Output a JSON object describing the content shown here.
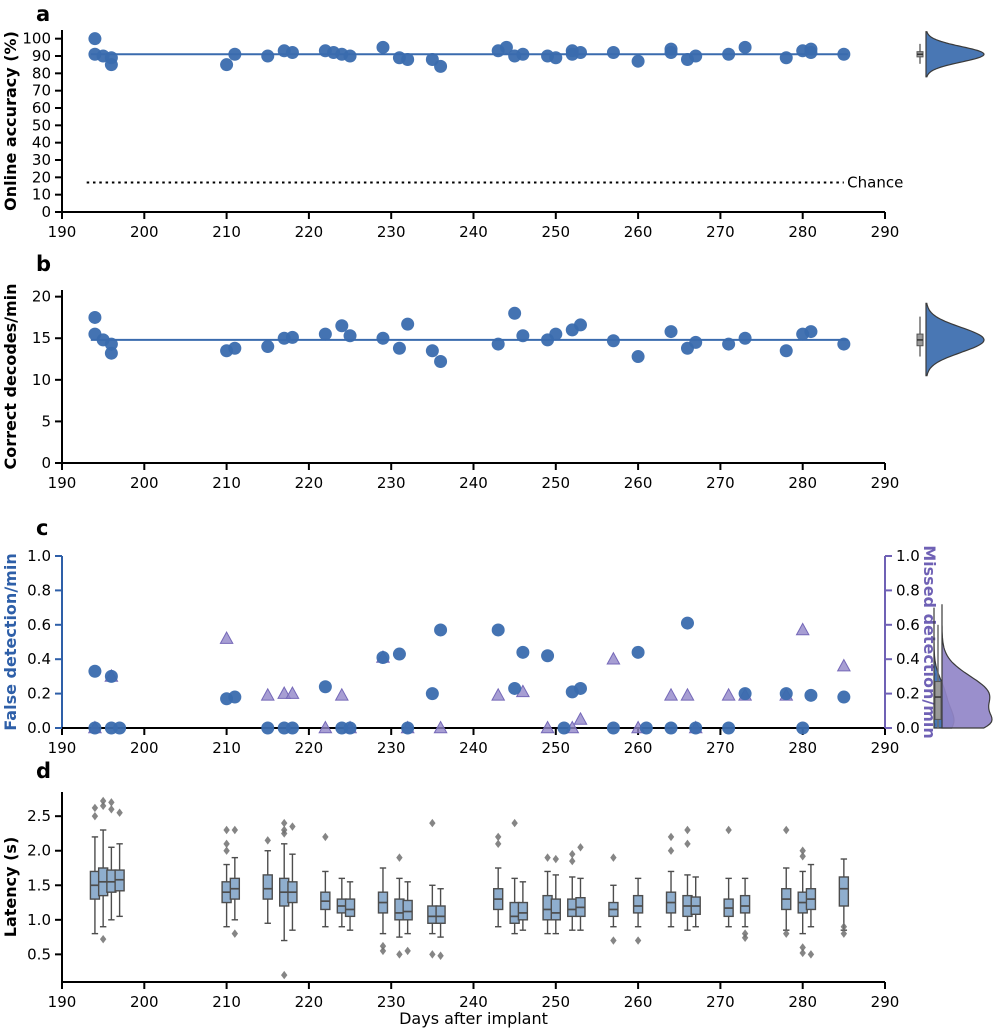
{
  "panel_labels": [
    "a",
    "b",
    "c",
    "d"
  ],
  "colors": {
    "blue": "#3A6BAE",
    "blue_edge": "#2B5795",
    "purple": "#9186C8",
    "purple_edge": "#7568B8",
    "left_axis_c": "#2E5FA8",
    "right_axis_c": "#6F61B5",
    "box_fill": "#8FAECE",
    "box_edge": "#4D4D4D",
    "outlier": "#707070",
    "axis": "#000000"
  },
  "x_axis": {
    "label": "Days after implant",
    "lim": [
      190,
      290
    ],
    "ticks": [
      190,
      200,
      210,
      220,
      230,
      240,
      250,
      260,
      270,
      280,
      290
    ]
  },
  "chart_data": [
    {
      "panel": "a",
      "type": "scatter",
      "ylabel": "Online accuracy (%)",
      "ylim": [
        0,
        105
      ],
      "yticks": [
        0,
        10,
        20,
        30,
        40,
        50,
        60,
        70,
        80,
        90,
        100
      ],
      "mean_line": 91,
      "chance": {
        "y": 17,
        "label": "Chance"
      },
      "points": [
        [
          194,
          100
        ],
        [
          194,
          91
        ],
        [
          195,
          90
        ],
        [
          196,
          89
        ],
        [
          196,
          85
        ],
        [
          210,
          85
        ],
        [
          211,
          91
        ],
        [
          215,
          90
        ],
        [
          217,
          93
        ],
        [
          218,
          92
        ],
        [
          222,
          93
        ],
        [
          223,
          92
        ],
        [
          224,
          91
        ],
        [
          225,
          90
        ],
        [
          229,
          95
        ],
        [
          231,
          89
        ],
        [
          232,
          88
        ],
        [
          235,
          88
        ],
        [
          236,
          84
        ],
        [
          243,
          93
        ],
        [
          244,
          95
        ],
        [
          245,
          90
        ],
        [
          246,
          91
        ],
        [
          249,
          90
        ],
        [
          250,
          89
        ],
        [
          252,
          93
        ],
        [
          252,
          91
        ],
        [
          253,
          92
        ],
        [
          257,
          92
        ],
        [
          260,
          87
        ],
        [
          264,
          94
        ],
        [
          264,
          92
        ],
        [
          266,
          88
        ],
        [
          267,
          90
        ],
        [
          271,
          91
        ],
        [
          273,
          95
        ],
        [
          278,
          89
        ],
        [
          280,
          93
        ],
        [
          281,
          94
        ],
        [
          281,
          92
        ],
        [
          285,
          91
        ]
      ],
      "violin": {
        "components": [
          {
            "mu": 91,
            "sigma": 4.5,
            "w": 1
          }
        ],
        "range": [
          78,
          104
        ],
        "box": {
          "lo": 85.5,
          "q1": 89.5,
          "med": 91,
          "q3": 92.5,
          "hi": 97
        }
      }
    },
    {
      "panel": "b",
      "type": "scatter",
      "ylabel": "Correct decodes/min",
      "ylim": [
        0,
        20.8
      ],
      "yticks": [
        0,
        5,
        10,
        15,
        20
      ],
      "mean_line": 14.8,
      "points": [
        [
          194,
          17.5
        ],
        [
          194,
          15.5
        ],
        [
          195,
          14.8
        ],
        [
          196,
          13.2
        ],
        [
          196,
          14.3
        ],
        [
          210,
          13.5
        ],
        [
          211,
          13.8
        ],
        [
          215,
          14.0
        ],
        [
          217,
          15.0
        ],
        [
          218,
          15.1
        ],
        [
          222,
          15.5
        ],
        [
          224,
          16.5
        ],
        [
          225,
          15.3
        ],
        [
          229,
          15.0
        ],
        [
          231,
          13.8
        ],
        [
          232,
          16.7
        ],
        [
          235,
          13.5
        ],
        [
          236,
          12.2
        ],
        [
          243,
          14.3
        ],
        [
          245,
          18.0
        ],
        [
          246,
          15.3
        ],
        [
          249,
          14.8
        ],
        [
          250,
          15.5
        ],
        [
          252,
          16.0
        ],
        [
          253,
          16.6
        ],
        [
          257,
          14.7
        ],
        [
          260,
          12.8
        ],
        [
          264,
          15.8
        ],
        [
          266,
          13.8
        ],
        [
          267,
          14.5
        ],
        [
          271,
          14.3
        ],
        [
          273,
          15.0
        ],
        [
          278,
          13.5
        ],
        [
          280,
          15.5
        ],
        [
          281,
          15.8
        ],
        [
          285,
          14.3
        ]
      ],
      "violin": {
        "components": [
          {
            "mu": 14.8,
            "sigma": 1.5,
            "w": 1
          }
        ],
        "range": [
          10.5,
          19.2
        ],
        "box": {
          "lo": 12.8,
          "q1": 14.1,
          "med": 14.8,
          "q3": 15.5,
          "hi": 17.6
        }
      }
    },
    {
      "panel": "c",
      "type": "scatter_dual",
      "ylabel_left": "False detection/min",
      "ylabel_right": "Missed detection/min",
      "ylim": [
        0,
        1.0
      ],
      "yticks": [
        0,
        0.2,
        0.4,
        0.6,
        0.8,
        1.0
      ],
      "false_points": [
        [
          194,
          0.33
        ],
        [
          194,
          0
        ],
        [
          196,
          0.3
        ],
        [
          196,
          0
        ],
        [
          197,
          0
        ],
        [
          210,
          0.17
        ],
        [
          211,
          0.18
        ],
        [
          215,
          0
        ],
        [
          217,
          0
        ],
        [
          218,
          0
        ],
        [
          222,
          0.24
        ],
        [
          224,
          0
        ],
        [
          225,
          0
        ],
        [
          229,
          0.41
        ],
        [
          231,
          0.43
        ],
        [
          232,
          0
        ],
        [
          235,
          0.2
        ],
        [
          236,
          0.57
        ],
        [
          243,
          0.57
        ],
        [
          245,
          0.23
        ],
        [
          246,
          0.44
        ],
        [
          249,
          0.42
        ],
        [
          251,
          0
        ],
        [
          252,
          0.21
        ],
        [
          253,
          0.23
        ],
        [
          257,
          0
        ],
        [
          260,
          0.44
        ],
        [
          261,
          0
        ],
        [
          264,
          0
        ],
        [
          266,
          0.61
        ],
        [
          267,
          0
        ],
        [
          271,
          0
        ],
        [
          273,
          0.2
        ],
        [
          278,
          0.2
        ],
        [
          280,
          0
        ],
        [
          281,
          0.19
        ],
        [
          285,
          0.18
        ]
      ],
      "missed_points": [
        [
          194,
          0
        ],
        [
          196,
          0.3
        ],
        [
          210,
          0.52
        ],
        [
          215,
          0.19
        ],
        [
          217,
          0.2
        ],
        [
          218,
          0.2
        ],
        [
          222,
          0
        ],
        [
          224,
          0.19
        ],
        [
          225,
          0
        ],
        [
          229,
          0.41
        ],
        [
          232,
          0
        ],
        [
          236,
          0
        ],
        [
          243,
          0.19
        ],
        [
          246,
          0.21
        ],
        [
          249,
          0
        ],
        [
          252,
          0
        ],
        [
          253,
          0.05
        ],
        [
          257,
          0.4
        ],
        [
          260,
          0
        ],
        [
          264,
          0.19
        ],
        [
          266,
          0.19
        ],
        [
          267,
          0
        ],
        [
          271,
          0.19
        ],
        [
          273,
          0.19
        ],
        [
          278,
          0.19
        ],
        [
          280,
          0.57
        ],
        [
          285,
          0.36
        ]
      ],
      "violin_false": {
        "components": [
          {
            "mu": 0.03,
            "sigma": 0.08,
            "w": 1
          },
          {
            "mu": 0.2,
            "sigma": 0.09,
            "w": 0.55
          }
        ],
        "range": [
          0,
          0.7
        ]
      },
      "violin_missed": {
        "components": [
          {
            "mu": 0.19,
            "sigma": 0.11,
            "w": 1
          },
          {
            "mu": 0.02,
            "sigma": 0.06,
            "w": 0.7
          }
        ],
        "range": [
          0,
          0.72
        ],
        "box": {
          "lo": 0,
          "q1": 0.05,
          "med": 0.18,
          "q3": 0.27,
          "hi": 0.6
        }
      }
    },
    {
      "panel": "d",
      "type": "box",
      "ylabel": "Latency (s)",
      "ylim": [
        0.1,
        2.85
      ],
      "yticks": [
        0.5,
        1.0,
        1.5,
        2.0,
        2.5
      ],
      "boxes": [
        {
          "x": 194,
          "lo": 0.8,
          "q1": 1.3,
          "med": 1.5,
          "q3": 1.7,
          "hi": 2.2,
          "out": [
            2.5,
            2.62
          ]
        },
        {
          "x": 195,
          "lo": 0.9,
          "q1": 1.35,
          "med": 1.55,
          "q3": 1.75,
          "hi": 2.3,
          "out": [
            2.65,
            2.72,
            0.72
          ]
        },
        {
          "x": 196,
          "lo": 1.0,
          "q1": 1.4,
          "med": 1.55,
          "q3": 1.72,
          "hi": 2.05,
          "out": [
            2.6,
            2.7
          ]
        },
        {
          "x": 197,
          "lo": 1.05,
          "q1": 1.42,
          "med": 1.58,
          "q3": 1.72,
          "hi": 2.1,
          "out": [
            2.55
          ]
        },
        {
          "x": 210,
          "lo": 0.9,
          "q1": 1.25,
          "med": 1.4,
          "q3": 1.55,
          "hi": 1.8,
          "out": [
            2.0,
            2.1,
            2.3
          ]
        },
        {
          "x": 211,
          "lo": 1.0,
          "q1": 1.3,
          "med": 1.45,
          "q3": 1.6,
          "hi": 1.9,
          "out": [
            2.3,
            0.8
          ]
        },
        {
          "x": 215,
          "lo": 0.95,
          "q1": 1.3,
          "med": 1.45,
          "q3": 1.65,
          "hi": 2.0,
          "out": [
            2.15
          ]
        },
        {
          "x": 217,
          "lo": 0.7,
          "q1": 1.2,
          "med": 1.4,
          "q3": 1.6,
          "hi": 2.1,
          "out": [
            2.4,
            2.3,
            2.25,
            0.2
          ]
        },
        {
          "x": 218,
          "lo": 0.85,
          "q1": 1.25,
          "med": 1.4,
          "q3": 1.55,
          "hi": 1.95,
          "out": [
            2.35
          ]
        },
        {
          "x": 222,
          "lo": 0.9,
          "q1": 1.15,
          "med": 1.27,
          "q3": 1.4,
          "hi": 1.7,
          "out": [
            2.2
          ]
        },
        {
          "x": 224,
          "lo": 0.9,
          "q1": 1.1,
          "med": 1.2,
          "q3": 1.3,
          "hi": 1.6,
          "out": []
        },
        {
          "x": 225,
          "lo": 0.85,
          "q1": 1.05,
          "med": 1.15,
          "q3": 1.3,
          "hi": 1.55,
          "out": []
        },
        {
          "x": 229,
          "lo": 0.8,
          "q1": 1.1,
          "med": 1.25,
          "q3": 1.4,
          "hi": 1.75,
          "out": [
            0.55,
            0.62
          ]
        },
        {
          "x": 231,
          "lo": 0.75,
          "q1": 1.0,
          "med": 1.1,
          "q3": 1.3,
          "hi": 1.6,
          "out": [
            1.9,
            0.5
          ]
        },
        {
          "x": 232,
          "lo": 0.8,
          "q1": 1.0,
          "med": 1.12,
          "q3": 1.28,
          "hi": 1.55,
          "out": [
            0.55
          ]
        },
        {
          "x": 235,
          "lo": 0.8,
          "q1": 0.95,
          "med": 1.05,
          "q3": 1.2,
          "hi": 1.5,
          "out": [
            2.4,
            0.5
          ]
        },
        {
          "x": 236,
          "lo": 0.75,
          "q1": 0.95,
          "med": 1.05,
          "q3": 1.2,
          "hi": 1.45,
          "out": [
            0.48
          ]
        },
        {
          "x": 243,
          "lo": 0.9,
          "q1": 1.15,
          "med": 1.3,
          "q3": 1.45,
          "hi": 1.75,
          "out": [
            2.2,
            2.1
          ]
        },
        {
          "x": 245,
          "lo": 0.8,
          "q1": 0.95,
          "med": 1.05,
          "q3": 1.25,
          "hi": 1.6,
          "out": [
            2.4
          ]
        },
        {
          "x": 246,
          "lo": 0.85,
          "q1": 1.0,
          "med": 1.1,
          "q3": 1.25,
          "hi": 1.55,
          "out": []
        },
        {
          "x": 249,
          "lo": 0.8,
          "q1": 1.0,
          "med": 1.15,
          "q3": 1.35,
          "hi": 1.7,
          "out": [
            1.9
          ]
        },
        {
          "x": 250,
          "lo": 0.8,
          "q1": 1.0,
          "med": 1.1,
          "q3": 1.3,
          "hi": 1.65,
          "out": [
            1.88
          ]
        },
        {
          "x": 252,
          "lo": 0.85,
          "q1": 1.05,
          "med": 1.15,
          "q3": 1.3,
          "hi": 1.62,
          "out": [
            1.95,
            1.85
          ]
        },
        {
          "x": 253,
          "lo": 0.85,
          "q1": 1.05,
          "med": 1.18,
          "q3": 1.32,
          "hi": 1.6,
          "out": [
            2.05
          ]
        },
        {
          "x": 257,
          "lo": 0.9,
          "q1": 1.05,
          "med": 1.15,
          "q3": 1.25,
          "hi": 1.5,
          "out": [
            1.9,
            0.7
          ]
        },
        {
          "x": 260,
          "lo": 0.9,
          "q1": 1.1,
          "med": 1.2,
          "q3": 1.35,
          "hi": 1.6,
          "out": [
            0.7
          ]
        },
        {
          "x": 264,
          "lo": 0.9,
          "q1": 1.1,
          "med": 1.25,
          "q3": 1.4,
          "hi": 1.7,
          "out": [
            2.2,
            2.0
          ]
        },
        {
          "x": 266,
          "lo": 0.85,
          "q1": 1.05,
          "med": 1.2,
          "q3": 1.35,
          "hi": 1.65,
          "out": [
            2.3,
            2.1
          ]
        },
        {
          "x": 267,
          "lo": 0.9,
          "q1": 1.08,
          "med": 1.2,
          "q3": 1.33,
          "hi": 1.62,
          "out": []
        },
        {
          "x": 271,
          "lo": 0.9,
          "q1": 1.05,
          "med": 1.17,
          "q3": 1.3,
          "hi": 1.6,
          "out": [
            2.3
          ]
        },
        {
          "x": 273,
          "lo": 0.9,
          "q1": 1.1,
          "med": 1.2,
          "q3": 1.35,
          "hi": 1.6,
          "out": [
            0.8,
            0.74
          ]
        },
        {
          "x": 278,
          "lo": 0.85,
          "q1": 1.15,
          "med": 1.3,
          "q3": 1.45,
          "hi": 1.75,
          "out": [
            2.3,
            0.8
          ]
        },
        {
          "x": 280,
          "lo": 0.8,
          "q1": 1.1,
          "med": 1.25,
          "q3": 1.4,
          "hi": 1.7,
          "out": [
            2.0,
            1.92,
            0.6,
            0.52
          ]
        },
        {
          "x": 281,
          "lo": 0.9,
          "q1": 1.15,
          "med": 1.3,
          "q3": 1.45,
          "hi": 1.8,
          "out": [
            0.5
          ]
        },
        {
          "x": 285,
          "lo": 0.85,
          "q1": 1.2,
          "med": 1.45,
          "q3": 1.62,
          "hi": 1.88,
          "out": [
            0.9,
            0.8
          ]
        }
      ]
    }
  ]
}
